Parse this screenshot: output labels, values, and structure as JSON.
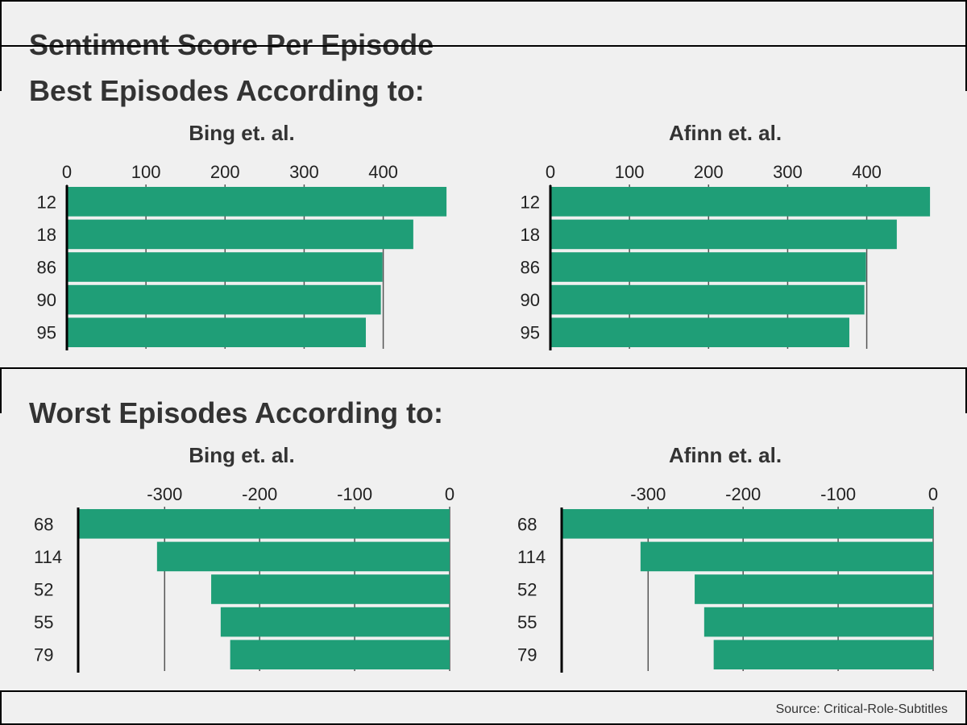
{
  "page": {
    "title": "Sentiment Score Per Episode",
    "source": "Source: Critical-Role-Subtitles",
    "colors": {
      "bar": "#1f9e77",
      "background": "#f0f0f0",
      "text": "#333333",
      "frame": "#000000",
      "grid": "#555555"
    }
  },
  "sections": [
    {
      "heading": "Best Episodes According to:"
    },
    {
      "heading": "Worst Episodes According to:"
    }
  ],
  "chart_data": [
    {
      "type": "bar",
      "orientation": "horizontal",
      "group": "best",
      "title": "Bing et. al.",
      "categories": [
        "12",
        "18",
        "86",
        "90",
        "95"
      ],
      "values": [
        480,
        438,
        399,
        397,
        378
      ],
      "xlim": [
        0,
        485
      ],
      "xticks": [
        0,
        100,
        200,
        300,
        400
      ],
      "xtick_labels": [
        "0",
        "100",
        "200",
        "300",
        "400"
      ],
      "axis_position": "top"
    },
    {
      "type": "bar",
      "orientation": "horizontal",
      "group": "best",
      "title": "Afinn et. al.",
      "categories": [
        "12",
        "18",
        "86",
        "90",
        "95"
      ],
      "values": [
        480,
        438,
        399,
        397,
        378
      ],
      "xlim": [
        0,
        485
      ],
      "xticks": [
        0,
        100,
        200,
        300,
        400
      ],
      "xtick_labels": [
        "0",
        "100",
        "200",
        "300",
        "400"
      ],
      "axis_position": "top"
    },
    {
      "type": "bar",
      "orientation": "horizontal",
      "group": "worst",
      "title": "Bing et. al.",
      "categories": [
        "68",
        "114",
        "52",
        "55",
        "79"
      ],
      "values": [
        -391,
        -308,
        -251,
        -241,
        -231
      ],
      "xlim": [
        -391,
        0
      ],
      "xticks": [
        -300,
        -200,
        -100,
        0
      ],
      "xtick_labels": [
        "-300",
        "-200",
        "-100",
        "0"
      ],
      "axis_position": "top"
    },
    {
      "type": "bar",
      "orientation": "horizontal",
      "group": "worst",
      "title": "Afinn et. al.",
      "categories": [
        "68",
        "114",
        "52",
        "55",
        "79"
      ],
      "values": [
        -391,
        -308,
        -251,
        -241,
        -231
      ],
      "xlim": [
        -391,
        0
      ],
      "xticks": [
        -300,
        -200,
        -100,
        0
      ],
      "xtick_labels": [
        "-300",
        "-200",
        "-100",
        "0"
      ],
      "axis_position": "top"
    }
  ]
}
